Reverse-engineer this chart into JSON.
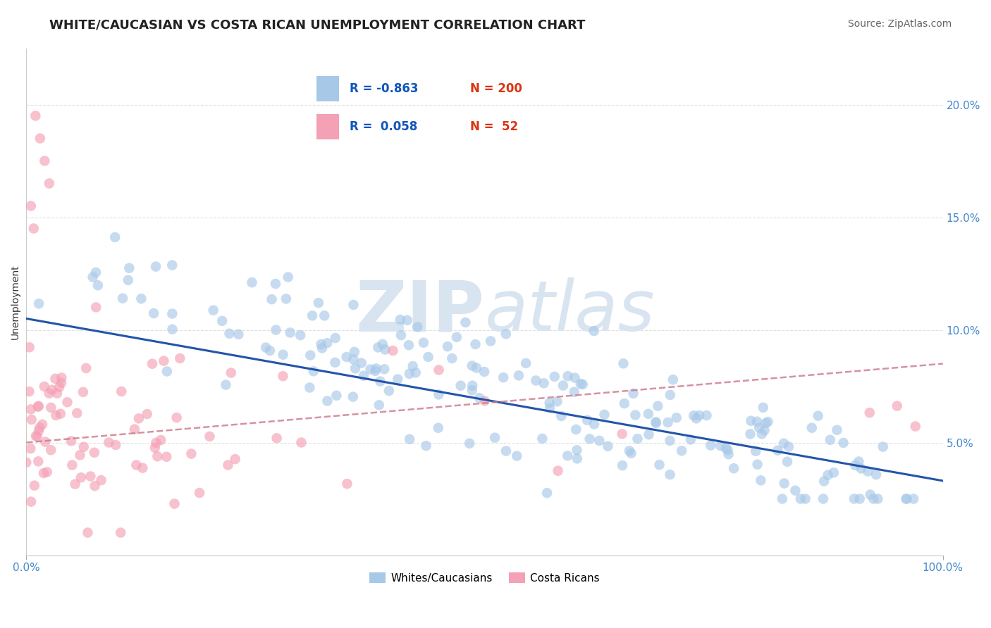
{
  "title": "WHITE/CAUCASIAN VS COSTA RICAN UNEMPLOYMENT CORRELATION CHART",
  "source": "Source: ZipAtlas.com",
  "ylabel": "Unemployment",
  "right_yticks": [
    "20.0%",
    "15.0%",
    "10.0%",
    "5.0%"
  ],
  "right_ytick_vals": [
    0.2,
    0.15,
    0.1,
    0.05
  ],
  "blue_R": -0.863,
  "blue_N": 200,
  "pink_R": 0.058,
  "pink_N": 52,
  "blue_color": "#A8C8E8",
  "blue_line_color": "#2255AA",
  "pink_color": "#F4A0B5",
  "pink_line_color": "#CC7788",
  "background_color": "#FFFFFF",
  "watermark_color": "#D8E4F0",
  "grid_color": "#DDDDDD",
  "xlim": [
    0.0,
    1.0
  ],
  "ylim": [
    0.0,
    0.225
  ],
  "title_fontsize": 13,
  "source_fontsize": 10,
  "label_fontsize": 10,
  "tick_fontsize": 11,
  "legend_fontsize": 13
}
